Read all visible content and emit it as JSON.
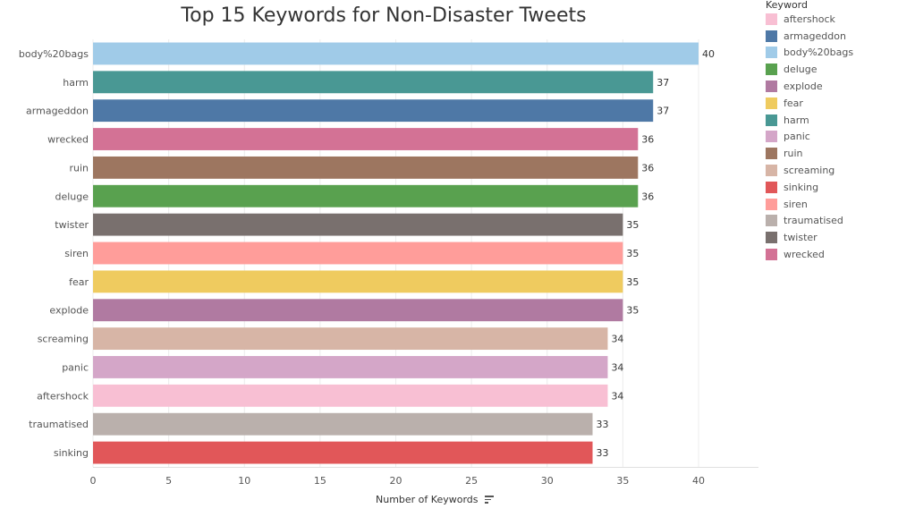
{
  "chart_data": {
    "type": "bar",
    "orientation": "horizontal",
    "title": "Top 15 Keywords for Non-Disaster Tweets",
    "xlabel": "Number of Keywords",
    "ylabel": "",
    "xlim": [
      0,
      43
    ],
    "x_ticks": [
      0,
      5,
      10,
      15,
      20,
      25,
      30,
      35,
      40
    ],
    "grid": true,
    "legend_position": "right",
    "legend_title": "Keyword",
    "categories": [
      "body%20bags",
      "harm",
      "armageddon",
      "wrecked",
      "ruin",
      "deluge",
      "twister",
      "siren",
      "fear",
      "explode",
      "screaming",
      "panic",
      "aftershock",
      "traumatised",
      "sinking"
    ],
    "values": [
      40,
      37,
      37,
      36,
      36,
      36,
      35,
      35,
      35,
      35,
      34,
      34,
      34,
      33,
      33
    ],
    "legend": [
      {
        "name": "aftershock",
        "color": "#F8BFD3"
      },
      {
        "name": "armageddon",
        "color": "#4E78A6"
      },
      {
        "name": "body%20bags",
        "color": "#A0CBE8"
      },
      {
        "name": "deluge",
        "color": "#59A14F"
      },
      {
        "name": "explode",
        "color": "#B07AA1"
      },
      {
        "name": "fear",
        "color": "#EFCB5F"
      },
      {
        "name": "harm",
        "color": "#499894"
      },
      {
        "name": "panic",
        "color": "#D4A6C8"
      },
      {
        "name": "ruin",
        "color": "#9D7660"
      },
      {
        "name": "screaming",
        "color": "#D7B5A6"
      },
      {
        "name": "sinking",
        "color": "#E15759"
      },
      {
        "name": "siren",
        "color": "#FF9D9A"
      },
      {
        "name": "traumatised",
        "color": "#BAB0AC"
      },
      {
        "name": "twister",
        "color": "#79706E"
      },
      {
        "name": "wrecked",
        "color": "#D37295"
      }
    ]
  }
}
